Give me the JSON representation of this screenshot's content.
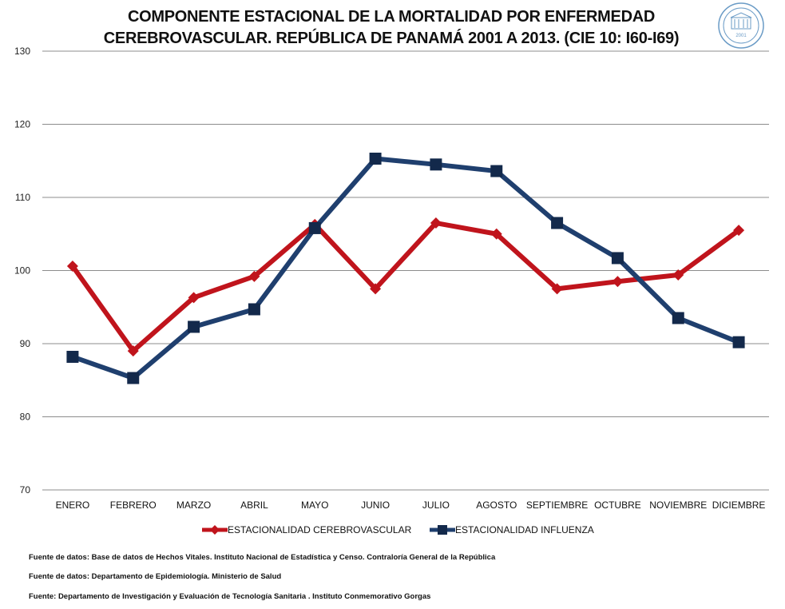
{
  "title": {
    "line1": "COMPONENTE ESTACIONAL DE LA MORTALIDAD POR ENFERMEDAD",
    "line2": "CEREBROVASCULAR. REPÚBLICA DE PANAMÁ 2001 A 2013. (CIE 10: I60-I69)"
  },
  "logo": {
    "icon": "institution-seal-icon",
    "text": "2001",
    "color": "#6a9bc6"
  },
  "chart_data": {
    "type": "line",
    "title": "COMPONENTE ESTACIONAL DE LA MORTALIDAD POR ENFERMEDAD CEREBROVASCULAR. REPÚBLICA DE PANAMÁ 2001 A 2013. (CIE 10: I60-I69)",
    "xlabel": "",
    "ylabel": "",
    "categories": [
      "ENERO",
      "FEBRERO",
      "MARZO",
      "ABRIL",
      "MAYO",
      "JUNIO",
      "JULIO",
      "AGOSTO",
      "SEPTIEMBRE",
      "OCTUBRE",
      "NOVIEMBRE",
      "DICIEMBRE"
    ],
    "ylim": [
      70,
      130
    ],
    "yticks": [
      70,
      80,
      90,
      100,
      110,
      120,
      130
    ],
    "grid": true,
    "legend": "bottom",
    "series": [
      {
        "name": "ESTACIONALIDAD CEREBROVASCULAR",
        "color": "#c0141c",
        "marker": "diamond",
        "values": [
          100.6,
          89.0,
          96.3,
          99.2,
          106.3,
          97.5,
          106.5,
          105.0,
          97.5,
          98.5,
          99.4,
          105.5
        ]
      },
      {
        "name": "ESTACIONALIDAD INFLUENZA",
        "color": "#1f3f6e",
        "marker": "square",
        "values": [
          88.2,
          85.3,
          92.3,
          94.7,
          105.8,
          115.3,
          114.5,
          113.6,
          106.5,
          101.7,
          93.5,
          90.2
        ]
      }
    ]
  },
  "footnotes": [
    "Fuente de datos:  Base  de datos  de Hechos Vitales. Instituto Nacional  de Estadística  y Censo. Contraloría  General de la República",
    "Fuente de datos:  Departamento  de Epidemiología.  Ministerio  de Salud",
    "Fuente: Departamento   de Investigación  y  Evaluación  de Tecnología Sanitaria   . Instituto  Conmemorativo Gorgas"
  ]
}
